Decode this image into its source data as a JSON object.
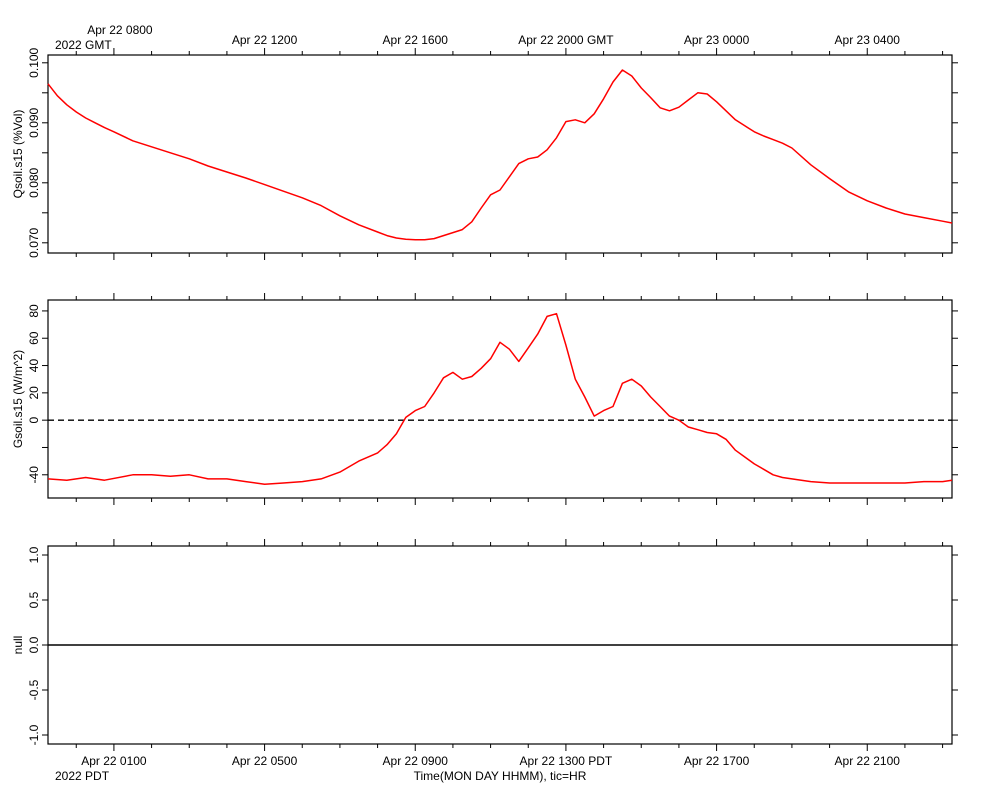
{
  "header": {
    "gmt_first_label": "Apr 22 0800",
    "gmt_year": "2022 GMT"
  },
  "footer": {
    "pdt_year": "2022 PDT",
    "xlabel": "Time(MON DAY HHMM), tic=HR"
  },
  "x_axis": {
    "start_hour_pdt": -0.75,
    "end_hour_pdt": 23.25,
    "gmt_ticks": [
      {
        "hour": 1,
        "label": "Apr 22 0800"
      },
      {
        "hour": 5,
        "label": "Apr 22 1200"
      },
      {
        "hour": 9,
        "label": "Apr 22 1600"
      },
      {
        "hour": 13,
        "label": "Apr 22 2000 GMT"
      },
      {
        "hour": 17,
        "label": "Apr 23 0000"
      },
      {
        "hour": 21,
        "label": "Apr 23 0400"
      }
    ],
    "pdt_ticks": [
      {
        "hour": 1,
        "label": "Apr 22 0100"
      },
      {
        "hour": 5,
        "label": "Apr 22 0500"
      },
      {
        "hour": 9,
        "label": "Apr 22 0900"
      },
      {
        "hour": 13,
        "label": "Apr 22 1300 PDT"
      },
      {
        "hour": 17,
        "label": "Apr 22 1700"
      },
      {
        "hour": 21,
        "label": "Apr 22 2100"
      }
    ]
  },
  "colors": {
    "series": "#ff0000",
    "axis": "#000000",
    "background": "#ffffff"
  },
  "chart_data": [
    {
      "type": "line",
      "ylabel": "Qsoil.s15 (%Vol)",
      "ylim": [
        0.0683,
        0.1013
      ],
      "yticks": [
        0.07,
        0.075,
        0.08,
        0.085,
        0.09,
        0.095,
        0.1
      ],
      "ytick_labels": [
        "0.070",
        "",
        "0.080",
        "",
        "0.090",
        "",
        "0.100"
      ],
      "grid": false,
      "x_unit": "hour of Apr 22 2022 PDT",
      "series": [
        {
          "color": "#ff0000",
          "x": [
            -0.75,
            -0.5,
            -0.25,
            0,
            0.25,
            0.5,
            0.75,
            1,
            1.5,
            2,
            2.5,
            3,
            3.5,
            4,
            4.5,
            5,
            5.5,
            6,
            6.5,
            7,
            7.5,
            8,
            8.25,
            8.5,
            8.75,
            9,
            9.25,
            9.5,
            9.75,
            10,
            10.25,
            10.5,
            10.75,
            11,
            11.25,
            11.5,
            11.75,
            12,
            12.25,
            12.5,
            12.75,
            13,
            13.25,
            13.5,
            13.75,
            14,
            14.25,
            14.5,
            14.75,
            15,
            15.25,
            15.5,
            15.75,
            16,
            16.25,
            16.5,
            16.75,
            17,
            17.25,
            17.5,
            17.75,
            18,
            18.25,
            18.5,
            18.75,
            19,
            19.5,
            20,
            20.5,
            21,
            21.5,
            22,
            22.5,
            23,
            23.25
          ],
          "y": [
            0.0965,
            0.0945,
            0.093,
            0.0918,
            0.0908,
            0.09,
            0.0892,
            0.0885,
            0.087,
            0.086,
            0.085,
            0.084,
            0.0828,
            0.0818,
            0.0808,
            0.0797,
            0.0786,
            0.0775,
            0.0762,
            0.0745,
            0.073,
            0.0718,
            0.0712,
            0.0708,
            0.0706,
            0.0705,
            0.0705,
            0.0707,
            0.0712,
            0.0717,
            0.0722,
            0.0735,
            0.0758,
            0.078,
            0.0788,
            0.081,
            0.0832,
            0.084,
            0.0843,
            0.0855,
            0.0875,
            0.0902,
            0.0905,
            0.09,
            0.0915,
            0.094,
            0.0968,
            0.0988,
            0.0978,
            0.0958,
            0.0942,
            0.0925,
            0.092,
            0.0926,
            0.0938,
            0.095,
            0.0948,
            0.0935,
            0.092,
            0.0905,
            0.0895,
            0.0885,
            0.0878,
            0.0872,
            0.0866,
            0.0858,
            0.083,
            0.0807,
            0.0785,
            0.077,
            0.0758,
            0.0748,
            0.0742,
            0.0736,
            0.0733
          ]
        }
      ]
    },
    {
      "type": "line",
      "ylabel": "Gsoil.s15 (W/m^2)",
      "ylim": [
        -57,
        88
      ],
      "yticks": [
        -40,
        -20,
        0,
        20,
        40,
        60,
        80
      ],
      "ytick_labels": [
        "-40",
        "",
        "0",
        "20",
        "40",
        "60",
        "80"
      ],
      "zero_line": "dashed",
      "grid": false,
      "x_unit": "hour of Apr 22 2022 PDT",
      "series": [
        {
          "color": "#ff0000",
          "x": [
            -0.75,
            -0.25,
            0.25,
            0.75,
            1.5,
            2,
            2.5,
            3,
            3.5,
            4,
            4.5,
            5,
            5.5,
            6,
            6.5,
            7,
            7.5,
            8,
            8.25,
            8.5,
            8.75,
            9,
            9.25,
            9.5,
            9.75,
            10,
            10.25,
            10.5,
            10.75,
            11,
            11.25,
            11.5,
            11.75,
            12,
            12.25,
            12.5,
            12.75,
            13,
            13.25,
            13.5,
            13.75,
            14,
            14.25,
            14.5,
            14.75,
            15,
            15.25,
            15.5,
            15.75,
            16,
            16.25,
            16.5,
            16.75,
            17,
            17.25,
            17.5,
            17.75,
            18,
            18.25,
            18.5,
            18.75,
            19,
            19.25,
            19.5,
            20,
            20.5,
            21,
            21.5,
            22,
            22.5,
            23,
            23.25
          ],
          "y": [
            -43,
            -44,
            -42,
            -44,
            -40,
            -40,
            -41,
            -40,
            -43,
            -43,
            -45,
            -47,
            -46,
            -45,
            -43,
            -38,
            -30,
            -24,
            -18,
            -10,
            2,
            7,
            10,
            20,
            31,
            35,
            30,
            32,
            38,
            45,
            57,
            52,
            43,
            53,
            63,
            76,
            78,
            55,
            30,
            17,
            3,
            7,
            10,
            27,
            30,
            25,
            17,
            10,
            3,
            0,
            -5,
            -7,
            -9,
            -10,
            -14,
            -22,
            -27,
            -32,
            -36,
            -40,
            -42,
            -43,
            -44,
            -45,
            -46,
            -46,
            -46,
            -46,
            -46,
            -45,
            -45,
            -44
          ]
        }
      ]
    },
    {
      "type": "line",
      "ylabel": "null",
      "ylim": [
        -1.1,
        1.1
      ],
      "yticks": [
        -1,
        -0.5,
        0,
        0.5,
        1
      ],
      "ytick_labels": [
        "-1.0",
        "-0.5",
        "0.0",
        "0.5",
        "1.0"
      ],
      "grid": false,
      "x_unit": "hour of Apr 22 2022 PDT",
      "series": [
        {
          "color": "#000000",
          "x": [
            -0.75,
            23.25
          ],
          "y": [
            0,
            0
          ]
        }
      ]
    }
  ]
}
